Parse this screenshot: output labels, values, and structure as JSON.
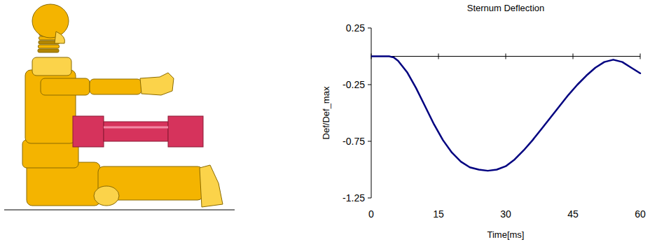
{
  "chart_data": {
    "type": "line",
    "title": "Sternum Deflection",
    "x_label": "Time[ms]",
    "y_label": "Def/Def_max",
    "x": [
      0,
      2,
      4,
      5,
      6,
      8,
      10,
      12,
      14,
      16,
      18,
      20,
      22,
      24,
      26,
      28,
      30,
      32,
      34,
      36,
      38,
      40,
      42,
      44,
      46,
      48,
      50,
      52,
      54,
      56,
      58,
      60
    ],
    "values": [
      0,
      0,
      0,
      -0.01,
      -0.04,
      -0.14,
      -0.28,
      -0.44,
      -0.6,
      -0.74,
      -0.85,
      -0.93,
      -0.98,
      -1.0,
      -1.01,
      -1.0,
      -0.97,
      -0.91,
      -0.83,
      -0.74,
      -0.64,
      -0.54,
      -0.44,
      -0.34,
      -0.25,
      -0.17,
      -0.1,
      -0.05,
      -0.03,
      -0.05,
      -0.1,
      -0.15
    ],
    "color": "#000080",
    "xlim": [
      0,
      60
    ],
    "xticks": [
      0,
      15,
      30,
      45,
      60
    ],
    "ylim": [
      -1.25,
      0.25
    ],
    "yticks": [
      0.25,
      -0.25,
      -0.75,
      -1.25
    ],
    "grid": false
  }
}
